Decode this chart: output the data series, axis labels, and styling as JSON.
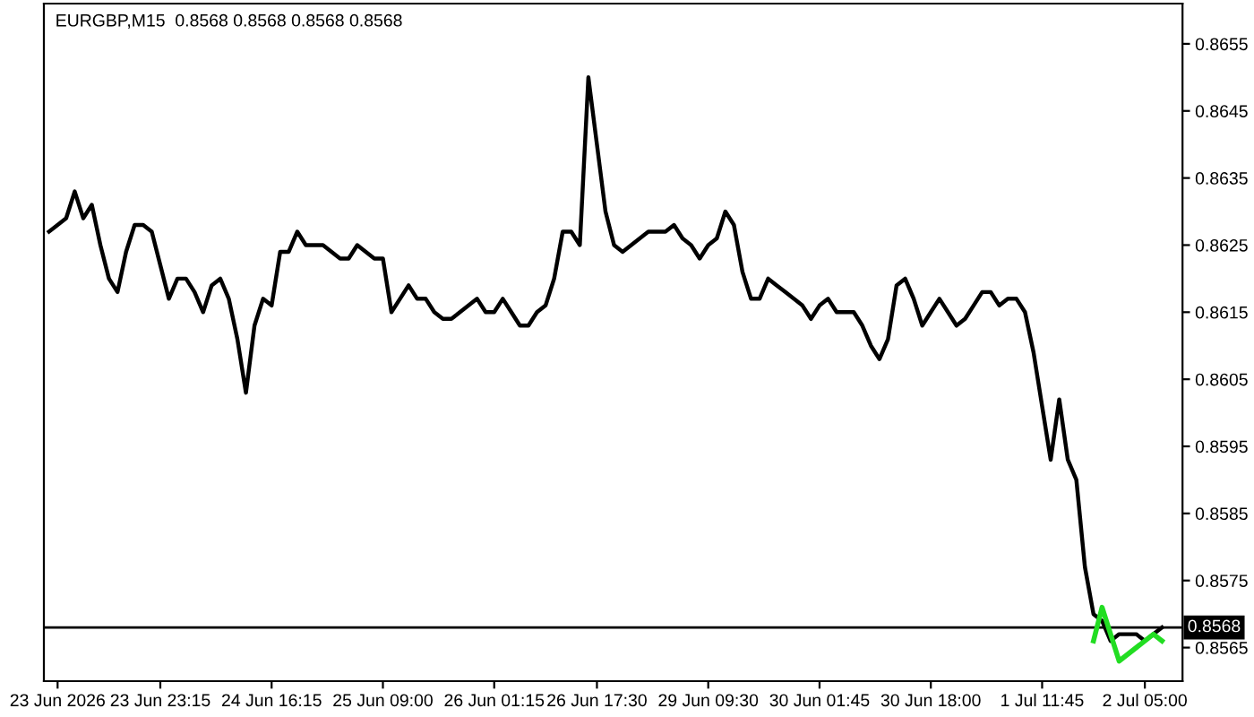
{
  "chart_data": {
    "type": "line",
    "title": "EURGBP,M15  0.8568 0.8568 0.8568 0.8568",
    "categories": [
      null,
      "23 Jun 2026",
      null,
      null,
      null,
      null,
      null,
      null,
      null,
      null,
      null,
      null,
      null,
      "23 Jun 23:15",
      null,
      null,
      null,
      null,
      null,
      null,
      null,
      null,
      null,
      null,
      null,
      null,
      "24 Jun 16:15",
      null,
      null,
      null,
      null,
      null,
      null,
      null,
      null,
      null,
      null,
      null,
      null,
      "25 Jun 09:00",
      null,
      null,
      null,
      null,
      null,
      null,
      null,
      null,
      null,
      null,
      null,
      null,
      "26 Jun 01:15",
      null,
      null,
      null,
      null,
      null,
      null,
      null,
      null,
      null,
      null,
      null,
      "26 Jun 17:30",
      null,
      null,
      null,
      null,
      null,
      null,
      null,
      null,
      null,
      null,
      null,
      null,
      "29 Jun 09:30",
      null,
      null,
      null,
      null,
      null,
      null,
      null,
      null,
      null,
      null,
      null,
      null,
      "30 Jun 01:45",
      null,
      null,
      null,
      null,
      null,
      null,
      null,
      null,
      null,
      null,
      null,
      null,
      "30 Jun 18:00",
      null,
      null,
      null,
      null,
      null,
      null,
      null,
      null,
      null,
      null,
      null,
      null,
      "1 Jul 11:45",
      null,
      null,
      null,
      null,
      null,
      null,
      null,
      null,
      null,
      null,
      null,
      "2 Jul 05:00",
      null,
      null
    ],
    "ylim": [
      0.856,
      0.8661
    ],
    "yticks": [
      0.8565,
      0.8575,
      0.8585,
      0.8595,
      0.8605,
      0.8615,
      0.8625,
      0.8635,
      0.8645,
      0.8655
    ],
    "grid": false,
    "marker": "none",
    "line_style": "solid",
    "ref_lines": [
      {
        "axis": "y",
        "value": 0.8568,
        "label": "0.8568",
        "color": "#000000"
      }
    ],
    "series": [
      {
        "color": "#000000",
        "values": [
          0.8627,
          0.8628,
          0.8629,
          0.8633,
          0.8629,
          0.8631,
          0.8625,
          0.862,
          0.8618,
          0.8624,
          0.8628,
          0.8628,
          0.8627,
          0.8622,
          0.8617,
          0.862,
          0.862,
          0.8618,
          0.8615,
          0.8619,
          0.862,
          0.8617,
          0.8611,
          0.8603,
          0.8613,
          0.8617,
          0.8616,
          0.8624,
          0.8624,
          0.8627,
          0.8625,
          0.8625,
          0.8625,
          0.8624,
          0.8623,
          0.8623,
          0.8625,
          0.8624,
          0.8623,
          0.8623,
          0.8615,
          0.8617,
          0.8619,
          0.8617,
          0.8617,
          0.8615,
          0.8614,
          0.8614,
          0.8615,
          0.8616,
          0.8617,
          0.8615,
          0.8615,
          0.8617,
          0.8615,
          0.8613,
          0.8613,
          0.8615,
          0.8616,
          0.862,
          0.8627,
          0.8627,
          0.8625,
          0.865,
          0.864,
          0.863,
          0.8625,
          0.8624,
          0.8625,
          0.8626,
          0.8627,
          0.8627,
          0.8627,
          0.8628,
          0.8626,
          0.8625,
          0.8623,
          0.8625,
          0.8626,
          0.863,
          0.8628,
          0.8621,
          0.8617,
          0.8617,
          0.862,
          0.8619,
          0.8618,
          0.8617,
          0.8616,
          0.8614,
          0.8616,
          0.8617,
          0.8615,
          0.8615,
          0.8615,
          0.8613,
          0.861,
          0.8608,
          0.8611,
          0.8619,
          0.862,
          0.8617,
          0.8613,
          0.8615,
          0.8617,
          0.8615,
          0.8613,
          0.8614,
          0.8616,
          0.8618,
          0.8618,
          0.8616,
          0.8617,
          0.8617,
          0.8615,
          0.8609,
          0.8601,
          0.8593,
          0.8602,
          0.8593,
          0.859,
          0.8577,
          0.857,
          0.8569,
          0.8566,
          0.8567,
          0.8567,
          0.8567,
          0.8566,
          0.8567,
          0.8568
        ]
      },
      {
        "color": "#22dd22",
        "values": [
          null,
          null,
          null,
          null,
          null,
          null,
          null,
          null,
          null,
          null,
          null,
          null,
          null,
          null,
          null,
          null,
          null,
          null,
          null,
          null,
          null,
          null,
          null,
          null,
          null,
          null,
          null,
          null,
          null,
          null,
          null,
          null,
          null,
          null,
          null,
          null,
          null,
          null,
          null,
          null,
          null,
          null,
          null,
          null,
          null,
          null,
          null,
          null,
          null,
          null,
          null,
          null,
          null,
          null,
          null,
          null,
          null,
          null,
          null,
          null,
          null,
          null,
          null,
          null,
          null,
          null,
          null,
          null,
          null,
          null,
          null,
          null,
          null,
          null,
          null,
          null,
          null,
          null,
          null,
          null,
          null,
          null,
          null,
          null,
          null,
          null,
          null,
          null,
          null,
          null,
          null,
          null,
          null,
          null,
          null,
          null,
          null,
          null,
          null,
          null,
          null,
          null,
          null,
          null,
          null,
          null,
          null,
          null,
          null,
          null,
          null,
          null,
          null,
          null,
          null,
          null,
          null,
          null,
          null,
          null,
          null,
          null,
          0.8566,
          0.8571,
          null,
          0.8563,
          null,
          null,
          null,
          0.8567,
          0.8566
        ]
      }
    ]
  }
}
